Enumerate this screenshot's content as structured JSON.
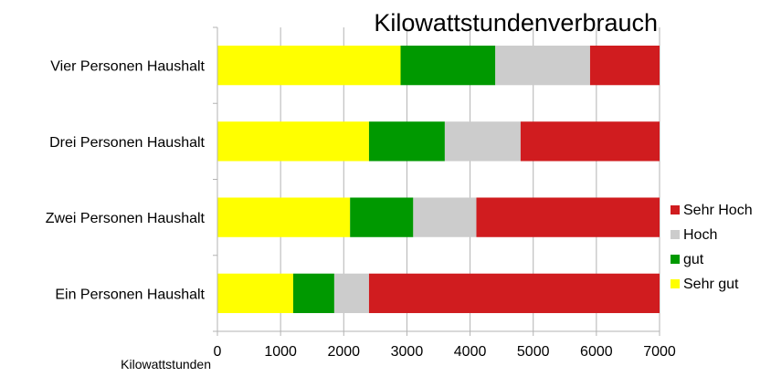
{
  "chart_data": {
    "type": "bar",
    "orientation": "horizontal",
    "stacked": true,
    "title": "Kilowattstundenverbrauch",
    "xlabel": "Kilowattstunden",
    "ylabel": "",
    "xlim": [
      0,
      7000
    ],
    "xticks": [
      0,
      1000,
      2000,
      3000,
      4000,
      5000,
      6000,
      7000
    ],
    "grid": "vertical",
    "legend_position": "right",
    "categories": [
      "Ein Personen Haushalt",
      "Zwei Personen Haushalt",
      "Drei Personen Haushalt",
      "Vier Personen Haushalt"
    ],
    "series": [
      {
        "name": "Sehr gut",
        "color": "#ffff00",
        "values": [
          1200,
          2100,
          2400,
          2900
        ]
      },
      {
        "name": "gut",
        "color": "#009900",
        "values": [
          650,
          1000,
          1200,
          1500
        ]
      },
      {
        "name": "Hoch",
        "color": "#cccccc",
        "values": [
          550,
          1000,
          1200,
          1500
        ]
      },
      {
        "name": "Sehr Hoch",
        "color": "#d01c1f",
        "values": [
          4600,
          2900,
          2200,
          1100
        ]
      }
    ],
    "legend_order": [
      "Sehr Hoch",
      "Hoch",
      "gut",
      "Sehr gut"
    ]
  }
}
